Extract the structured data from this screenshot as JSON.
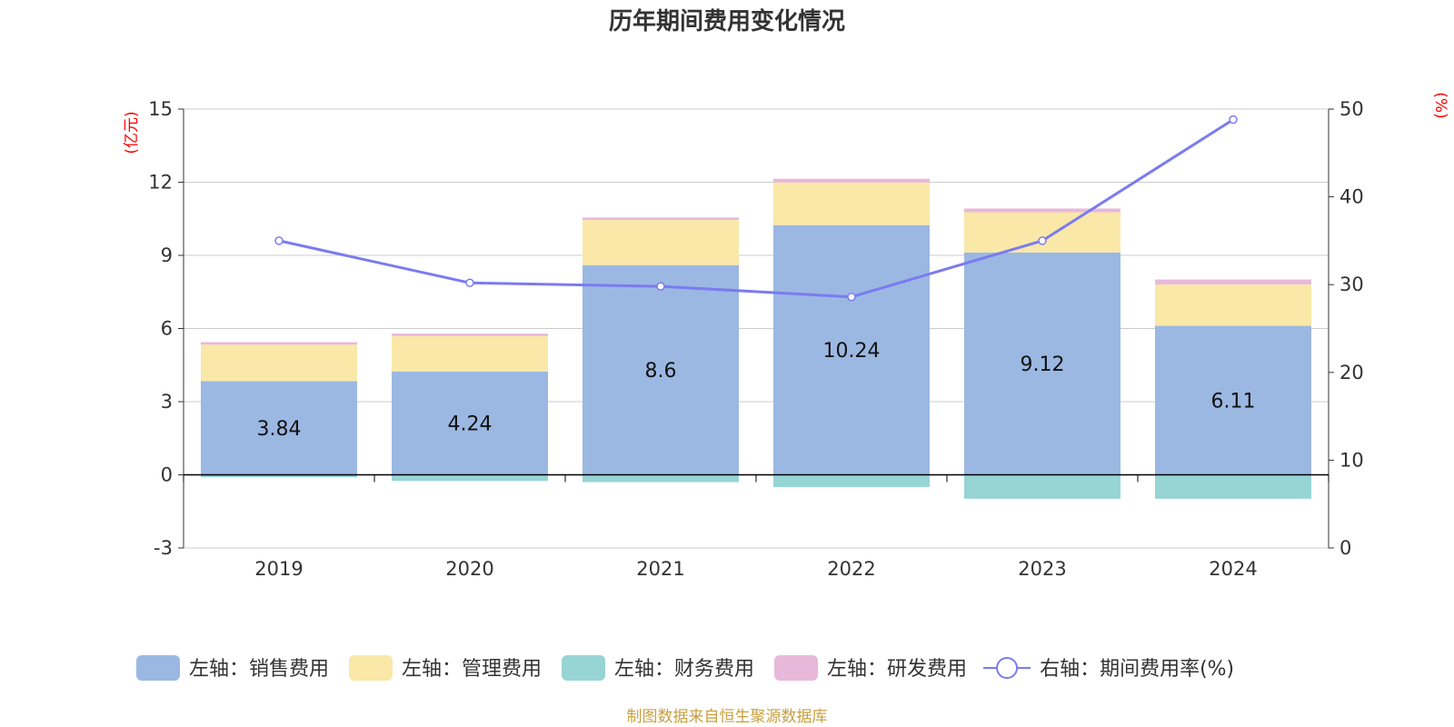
{
  "chart_data": {
    "type": "bar",
    "title": "历年期间费用变化情况",
    "categories": [
      "2019",
      "2020",
      "2021",
      "2022",
      "2023",
      "2024"
    ],
    "y_left": {
      "unit_label": "(亿元)",
      "ylim": [
        -3,
        15
      ],
      "ticks": [
        "-3",
        "0",
        "3",
        "6",
        "9",
        "12",
        "15"
      ]
    },
    "y_right": {
      "unit_label": "(%)",
      "ylim": [
        0,
        50
      ],
      "ticks": [
        "0",
        "10",
        "20",
        "30",
        "40",
        "50"
      ]
    },
    "series": [
      {
        "name": "左轴：销售费用",
        "axis": "left",
        "kind": "stacked-bar",
        "color": "#9BB8E2",
        "values": [
          3.84,
          4.24,
          8.6,
          10.24,
          9.12,
          6.11
        ],
        "data_labels": [
          "3.84",
          "4.24",
          "8.6",
          "10.24",
          "9.12",
          "6.11"
        ]
      },
      {
        "name": "左轴：管理费用",
        "axis": "left",
        "kind": "stacked-bar",
        "color": "#F9E8A8",
        "values": [
          1.5,
          1.45,
          1.85,
          1.75,
          1.65,
          1.7
        ]
      },
      {
        "name": "左轴：财务费用",
        "axis": "left",
        "kind": "stacked-bar",
        "color": "#97D4D4",
        "values": [
          -0.1,
          -0.25,
          -0.3,
          -0.5,
          -0.98,
          -0.98
        ]
      },
      {
        "name": "左轴：研发费用",
        "axis": "left",
        "kind": "stacked-bar",
        "color": "#E8B8DA",
        "values": [
          0.1,
          0.1,
          0.1,
          0.15,
          0.15,
          0.2
        ]
      },
      {
        "name": "右轴：期间费用率(%)",
        "axis": "right",
        "kind": "line",
        "color": "#7B7BEF",
        "values": [
          35,
          30.2,
          29.8,
          28.6,
          35,
          48.8
        ]
      }
    ],
    "legend_position": "bottom",
    "grid": true
  },
  "source": {
    "text": "制图数据来自恒生聚源数据库",
    "color": "#C8A040"
  },
  "colors": {
    "unit_label": "#FF0000",
    "axis_text": "#333333",
    "grid": "#CCCCCC"
  }
}
